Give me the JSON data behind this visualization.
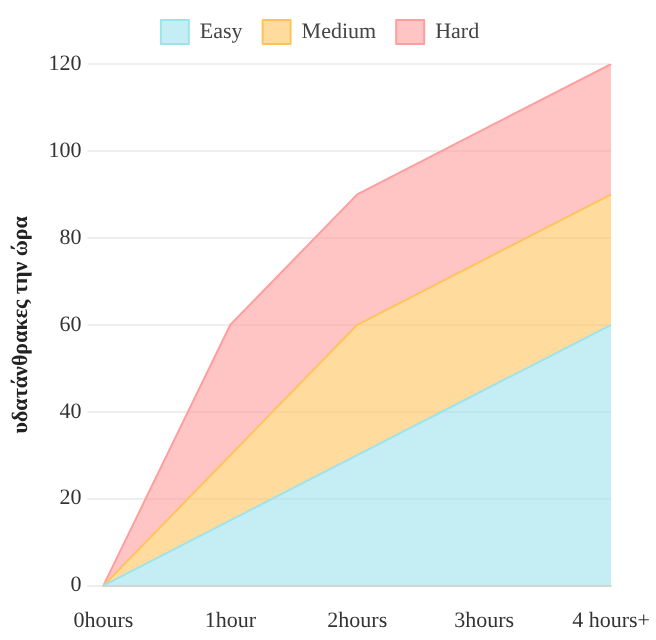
{
  "chart_data": {
    "type": "area",
    "stacked": true,
    "ylabel": "υδατάνθρακες την ώρα",
    "categories": [
      "0hours",
      "1hour",
      "2hours",
      "3hours",
      "4 hours+"
    ],
    "series": [
      {
        "name": "Easy",
        "color": "#9ee3ec",
        "values": [
          0,
          15,
          30,
          45,
          60
        ]
      },
      {
        "name": "Medium",
        "color": "#ffc35e",
        "values": [
          0,
          15,
          30,
          30,
          30
        ]
      },
      {
        "name": "Hard",
        "color": "#ff9e9e",
        "values": [
          0,
          30,
          30,
          30,
          30
        ]
      }
    ],
    "ylim": [
      0,
      120
    ],
    "yticks": [
      0,
      20,
      40,
      60,
      80,
      100,
      120
    ],
    "grid": "y",
    "legend": "top"
  }
}
